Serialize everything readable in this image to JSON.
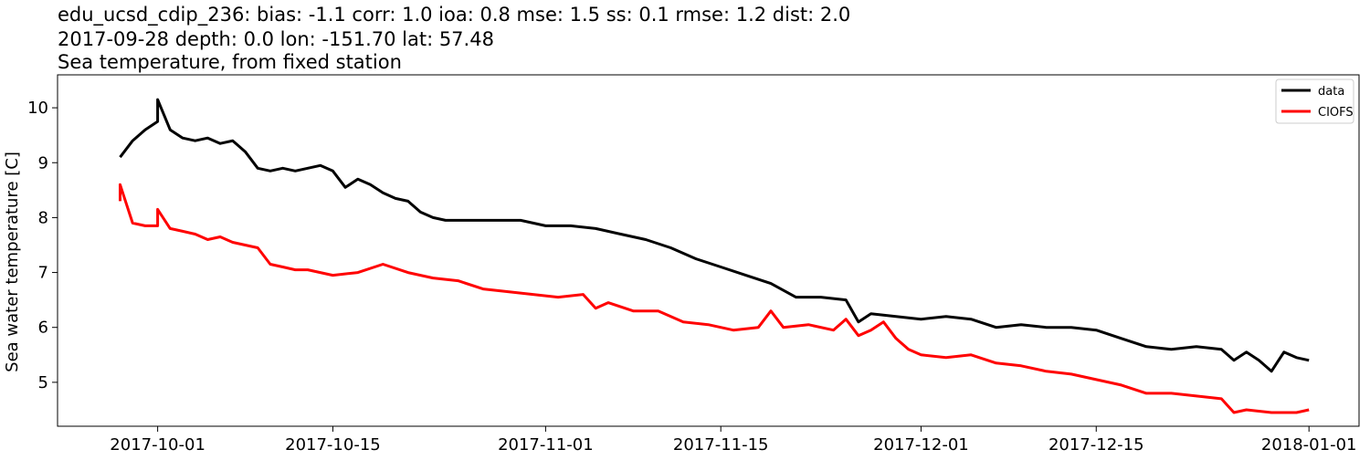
{
  "chart_data": {
    "type": "line",
    "title_lines": [
      "edu_ucsd_cdip_236: bias: -1.1  corr: 1.0  ioa: 0.8  mse: 1.5  ss: 0.1  rmse: 1.2  dist: 2.0",
      "2017-09-28 depth: 0.0 lon: -151.70 lat: 57.48",
      "Sea temperature, from fixed station"
    ],
    "xlabel": "",
    "ylabel": "Sea water temperature [C]",
    "xlim": [
      "2017-09-23",
      "2018-01-05"
    ],
    "ylim": [
      4.2,
      10.6
    ],
    "xticks": [
      "2017-10-01",
      "2017-10-15",
      "2017-11-01",
      "2017-11-15",
      "2017-12-01",
      "2017-12-15",
      "2018-01-01"
    ],
    "yticks": [
      5,
      6,
      7,
      8,
      9,
      10
    ],
    "legend_position": "top-right",
    "grid": false,
    "series": [
      {
        "name": "data",
        "color": "#000000",
        "points": [
          [
            "2017-09-28",
            9.1
          ],
          [
            "2017-09-29",
            9.4
          ],
          [
            "2017-09-30",
            9.6
          ],
          [
            "2017-10-01",
            9.75
          ],
          [
            "2017-10-01",
            10.15
          ],
          [
            "2017-10-02",
            9.6
          ],
          [
            "2017-10-03",
            9.45
          ],
          [
            "2017-10-04",
            9.4
          ],
          [
            "2017-10-05",
            9.45
          ],
          [
            "2017-10-06",
            9.35
          ],
          [
            "2017-10-07",
            9.4
          ],
          [
            "2017-10-08",
            9.2
          ],
          [
            "2017-10-09",
            8.9
          ],
          [
            "2017-10-10",
            8.85
          ],
          [
            "2017-10-11",
            8.9
          ],
          [
            "2017-10-12",
            8.85
          ],
          [
            "2017-10-13",
            8.9
          ],
          [
            "2017-10-14",
            8.95
          ],
          [
            "2017-10-15",
            8.85
          ],
          [
            "2017-10-16",
            8.55
          ],
          [
            "2017-10-17",
            8.7
          ],
          [
            "2017-10-18",
            8.6
          ],
          [
            "2017-10-19",
            8.45
          ],
          [
            "2017-10-20",
            8.35
          ],
          [
            "2017-10-21",
            8.3
          ],
          [
            "2017-10-22",
            8.1
          ],
          [
            "2017-10-23",
            8.0
          ],
          [
            "2017-10-24",
            7.95
          ],
          [
            "2017-10-26",
            7.95
          ],
          [
            "2017-10-28",
            7.95
          ],
          [
            "2017-10-30",
            7.95
          ],
          [
            "2017-11-01",
            7.85
          ],
          [
            "2017-11-03",
            7.85
          ],
          [
            "2017-11-05",
            7.8
          ],
          [
            "2017-11-07",
            7.7
          ],
          [
            "2017-11-09",
            7.6
          ],
          [
            "2017-11-11",
            7.45
          ],
          [
            "2017-11-13",
            7.25
          ],
          [
            "2017-11-15",
            7.1
          ],
          [
            "2017-11-17",
            6.95
          ],
          [
            "2017-11-19",
            6.8
          ],
          [
            "2017-11-21",
            6.55
          ],
          [
            "2017-11-23",
            6.55
          ],
          [
            "2017-11-25",
            6.5
          ],
          [
            "2017-11-26",
            6.1
          ],
          [
            "2017-11-27",
            6.25
          ],
          [
            "2017-11-29",
            6.2
          ],
          [
            "2017-12-01",
            6.15
          ],
          [
            "2017-12-03",
            6.2
          ],
          [
            "2017-12-05",
            6.15
          ],
          [
            "2017-12-07",
            6.0
          ],
          [
            "2017-12-09",
            6.05
          ],
          [
            "2017-12-11",
            6.0
          ],
          [
            "2017-12-13",
            6.0
          ],
          [
            "2017-12-15",
            5.95
          ],
          [
            "2017-12-17",
            5.8
          ],
          [
            "2017-12-19",
            5.65
          ],
          [
            "2017-12-21",
            5.6
          ],
          [
            "2017-12-23",
            5.65
          ],
          [
            "2017-12-25",
            5.6
          ],
          [
            "2017-12-26",
            5.4
          ],
          [
            "2017-12-27",
            5.55
          ],
          [
            "2017-12-28",
            5.4
          ],
          [
            "2017-12-29",
            5.2
          ],
          [
            "2017-12-30",
            5.55
          ],
          [
            "2017-12-31",
            5.45
          ],
          [
            "2018-01-01",
            5.4
          ]
        ]
      },
      {
        "name": "CIOFS",
        "color": "#ff0000",
        "points": [
          [
            "2017-09-28",
            8.3
          ],
          [
            "2017-09-28",
            8.6
          ],
          [
            "2017-09-29",
            7.9
          ],
          [
            "2017-09-30",
            7.85
          ],
          [
            "2017-10-01",
            7.85
          ],
          [
            "2017-10-01",
            8.15
          ],
          [
            "2017-10-02",
            7.8
          ],
          [
            "2017-10-03",
            7.75
          ],
          [
            "2017-10-04",
            7.7
          ],
          [
            "2017-10-05",
            7.6
          ],
          [
            "2017-10-06",
            7.65
          ],
          [
            "2017-10-07",
            7.55
          ],
          [
            "2017-10-08",
            7.5
          ],
          [
            "2017-10-09",
            7.45
          ],
          [
            "2017-10-10",
            7.15
          ],
          [
            "2017-10-11",
            7.1
          ],
          [
            "2017-10-12",
            7.05
          ],
          [
            "2017-10-13",
            7.05
          ],
          [
            "2017-10-15",
            6.95
          ],
          [
            "2017-10-17",
            7.0
          ],
          [
            "2017-10-19",
            7.15
          ],
          [
            "2017-10-21",
            7.0
          ],
          [
            "2017-10-23",
            6.9
          ],
          [
            "2017-10-25",
            6.85
          ],
          [
            "2017-10-27",
            6.7
          ],
          [
            "2017-10-29",
            6.65
          ],
          [
            "2017-10-31",
            6.6
          ],
          [
            "2017-11-02",
            6.55
          ],
          [
            "2017-11-04",
            6.6
          ],
          [
            "2017-11-05",
            6.35
          ],
          [
            "2017-11-06",
            6.45
          ],
          [
            "2017-11-08",
            6.3
          ],
          [
            "2017-11-10",
            6.3
          ],
          [
            "2017-11-12",
            6.1
          ],
          [
            "2017-11-14",
            6.05
          ],
          [
            "2017-11-16",
            5.95
          ],
          [
            "2017-11-18",
            6.0
          ],
          [
            "2017-11-19",
            6.3
          ],
          [
            "2017-11-20",
            6.0
          ],
          [
            "2017-11-22",
            6.05
          ],
          [
            "2017-11-24",
            5.95
          ],
          [
            "2017-11-25",
            6.15
          ],
          [
            "2017-11-26",
            5.85
          ],
          [
            "2017-11-27",
            5.95
          ],
          [
            "2017-11-28",
            6.1
          ],
          [
            "2017-11-29",
            5.8
          ],
          [
            "2017-11-30",
            5.6
          ],
          [
            "2017-12-01",
            5.5
          ],
          [
            "2017-12-03",
            5.45
          ],
          [
            "2017-12-05",
            5.5
          ],
          [
            "2017-12-07",
            5.35
          ],
          [
            "2017-12-09",
            5.3
          ],
          [
            "2017-12-11",
            5.2
          ],
          [
            "2017-12-13",
            5.15
          ],
          [
            "2017-12-15",
            5.05
          ],
          [
            "2017-12-17",
            4.95
          ],
          [
            "2017-12-19",
            4.8
          ],
          [
            "2017-12-21",
            4.8
          ],
          [
            "2017-12-23",
            4.75
          ],
          [
            "2017-12-25",
            4.7
          ],
          [
            "2017-12-26",
            4.45
          ],
          [
            "2017-12-27",
            4.5
          ],
          [
            "2017-12-29",
            4.45
          ],
          [
            "2017-12-31",
            4.45
          ],
          [
            "2018-01-01",
            4.5
          ]
        ]
      }
    ]
  }
}
